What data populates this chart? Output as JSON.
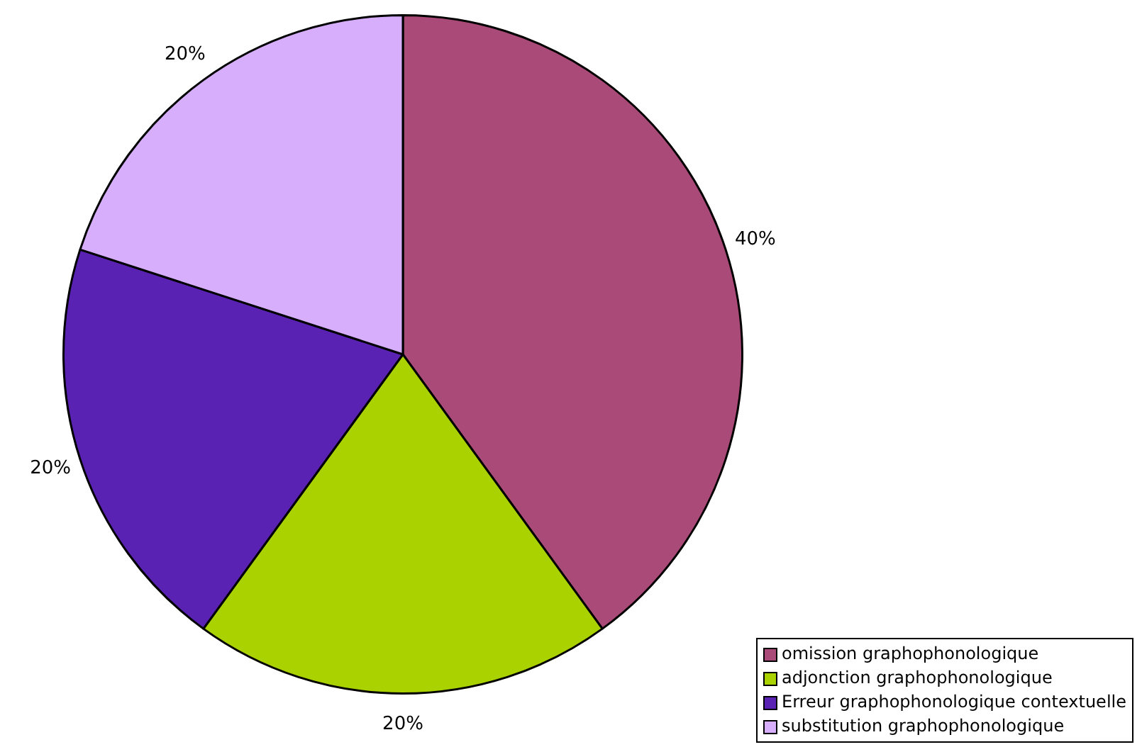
{
  "chart_data": {
    "type": "pie",
    "categories": [
      "omission graphophonologique",
      "adjonction graphophonologique",
      "Erreur graphophonologique contextuelle",
      "substitution graphophonologique"
    ],
    "values": [
      40,
      20,
      20,
      20
    ],
    "colors": [
      "#a94a78",
      "#aad100",
      "#5a22b3",
      "#d6aefc"
    ],
    "value_labels": [
      "40%",
      "20%",
      "20%",
      "20%"
    ],
    "legend": "bottom right"
  }
}
